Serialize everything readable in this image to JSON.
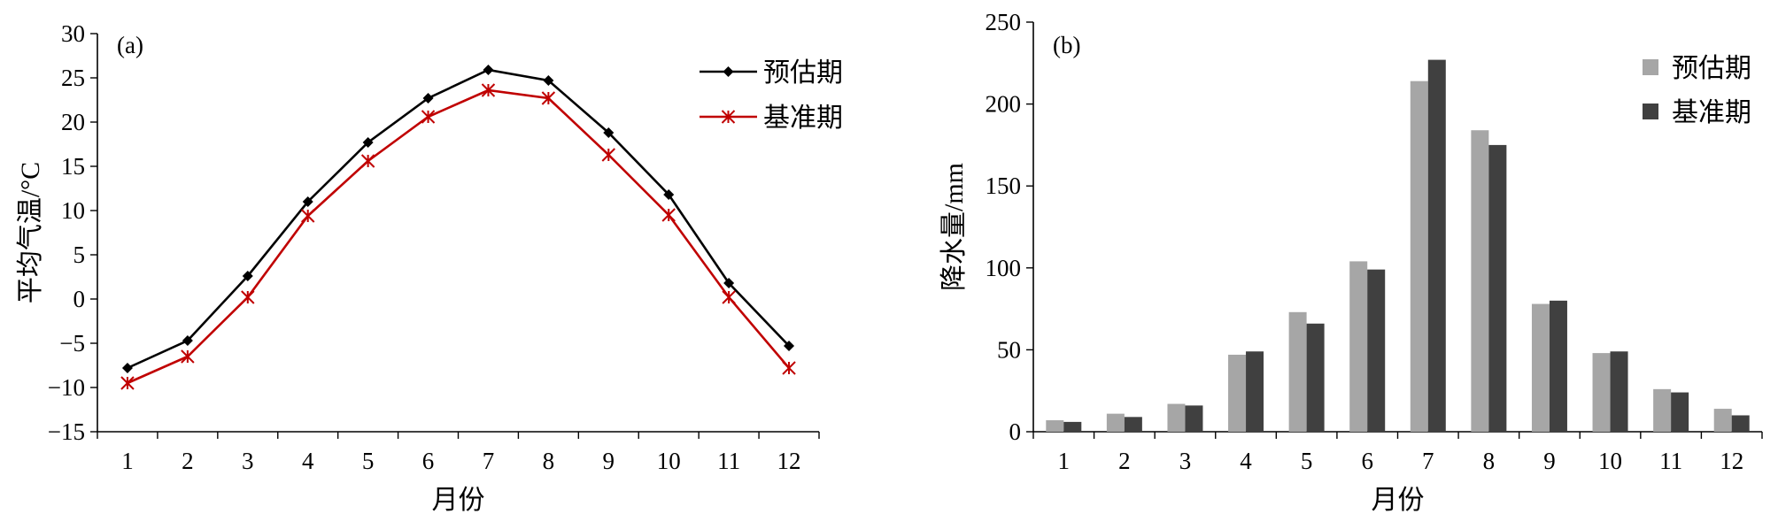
{
  "chart_data": [
    {
      "panel": "(a)",
      "type": "line",
      "xlabel": "月份",
      "ylabel": "平均气温/°C",
      "categories": [
        "1",
        "2",
        "3",
        "4",
        "5",
        "6",
        "7",
        "8",
        "9",
        "10",
        "11",
        "12"
      ],
      "ylim": [
        -15,
        30
      ],
      "yticks": [
        -15,
        -10,
        -5,
        0,
        5,
        10,
        15,
        20,
        25,
        30
      ],
      "legend_position": "top-right",
      "series": [
        {
          "name": "预估期",
          "color": "#000000",
          "marker": "diamond",
          "values": [
            -7.8,
            -4.7,
            2.6,
            11.0,
            17.7,
            22.7,
            25.9,
            24.7,
            18.8,
            11.8,
            1.8,
            -5.3
          ]
        },
        {
          "name": "基准期",
          "color": "#c00000",
          "marker": "asterisk",
          "values": [
            -9.5,
            -6.5,
            0.2,
            9.4,
            15.6,
            20.6,
            23.6,
            22.7,
            16.3,
            9.5,
            0.2,
            -7.8
          ]
        }
      ]
    },
    {
      "panel": "(b)",
      "type": "bar",
      "xlabel": "月份",
      "ylabel": "降水量/mm",
      "categories": [
        "1",
        "2",
        "3",
        "4",
        "5",
        "6",
        "7",
        "8",
        "9",
        "10",
        "11",
        "12"
      ],
      "ylim": [
        0,
        250
      ],
      "yticks": [
        0,
        50,
        100,
        150,
        200,
        250
      ],
      "legend_position": "top-right",
      "series": [
        {
          "name": "预估期",
          "color": "#a6a6a6",
          "values": [
            7,
            11,
            17,
            47,
            73,
            104,
            214,
            184,
            78,
            48,
            26,
            14
          ]
        },
        {
          "name": "基准期",
          "color": "#404040",
          "values": [
            6,
            9,
            16,
            49,
            66,
            99,
            227,
            175,
            80,
            49,
            24,
            10
          ]
        }
      ]
    }
  ]
}
